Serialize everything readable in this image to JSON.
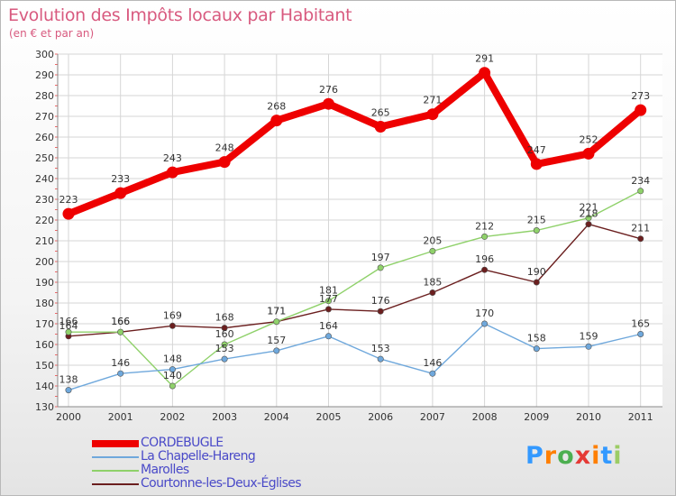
{
  "page": {
    "title": "Evolution des Impôts locaux par Habitant",
    "subtitle": "(en € et par an)",
    "logo_text": "Proxiti"
  },
  "colors": {
    "title": "#d85a7f",
    "legend_text": "#4a4ac8",
    "logo_letters": [
      "#3399ff",
      "#ff7f00",
      "#4caf50",
      "#e53935",
      "#ff7f00",
      "#3399ff",
      "#9ccc65"
    ]
  },
  "chart_data": {
    "type": "line",
    "title": "Evolution des Impôts locaux par Habitant",
    "subtitle": "(en € et par an)",
    "xlabel": "",
    "ylabel": "",
    "x": [
      "2000",
      "2001",
      "2002",
      "2003",
      "2004",
      "2005",
      "2006",
      "2007",
      "2008",
      "2009",
      "2010",
      "2011"
    ],
    "ylim": [
      130,
      300
    ],
    "yticks": [
      130,
      140,
      150,
      160,
      170,
      180,
      190,
      200,
      210,
      220,
      230,
      240,
      250,
      260,
      270,
      280,
      290,
      300
    ],
    "grid": true,
    "legend_position": "bottom-left",
    "series": [
      {
        "name": "CORDEBUGLE",
        "color": "#ee0000",
        "emphasis": "thick",
        "values": [
          223,
          233,
          243,
          248,
          268,
          276,
          265,
          271,
          291,
          247,
          252,
          273
        ]
      },
      {
        "name": "La Chapelle-Hareng",
        "color": "#6fa8dc",
        "emphasis": "thin",
        "values": [
          138,
          146,
          148,
          153,
          157,
          164,
          153,
          146,
          170,
          158,
          159,
          165
        ]
      },
      {
        "name": "Marolles",
        "color": "#8fd16a",
        "emphasis": "thin",
        "values": [
          166,
          166,
          140,
          160,
          171,
          181,
          197,
          205,
          212,
          215,
          221,
          234
        ]
      },
      {
        "name": "Courtonne-les-Deux-Églises",
        "color": "#6b1f1f",
        "emphasis": "thin",
        "values": [
          164,
          166,
          169,
          168,
          171,
          177,
          176,
          185,
          196,
          190,
          218,
          211
        ]
      }
    ],
    "data_labels": [
      [
        "223",
        "233",
        "243",
        "248",
        "268",
        "276",
        "265",
        "271",
        "291",
        "247",
        "252",
        "273"
      ],
      [
        "138",
        "146",
        "148",
        "153",
        "157",
        "164",
        "153",
        "146",
        "170",
        "158",
        "159",
        "165"
      ],
      [
        "166",
        "166",
        "140",
        "160",
        "171",
        "181",
        "197",
        "205",
        "212",
        "215",
        "221",
        "234"
      ],
      [
        "164",
        "166",
        "169",
        "168",
        "171",
        "177",
        "176",
        "185",
        "196",
        "190",
        "218",
        "211"
      ]
    ]
  }
}
